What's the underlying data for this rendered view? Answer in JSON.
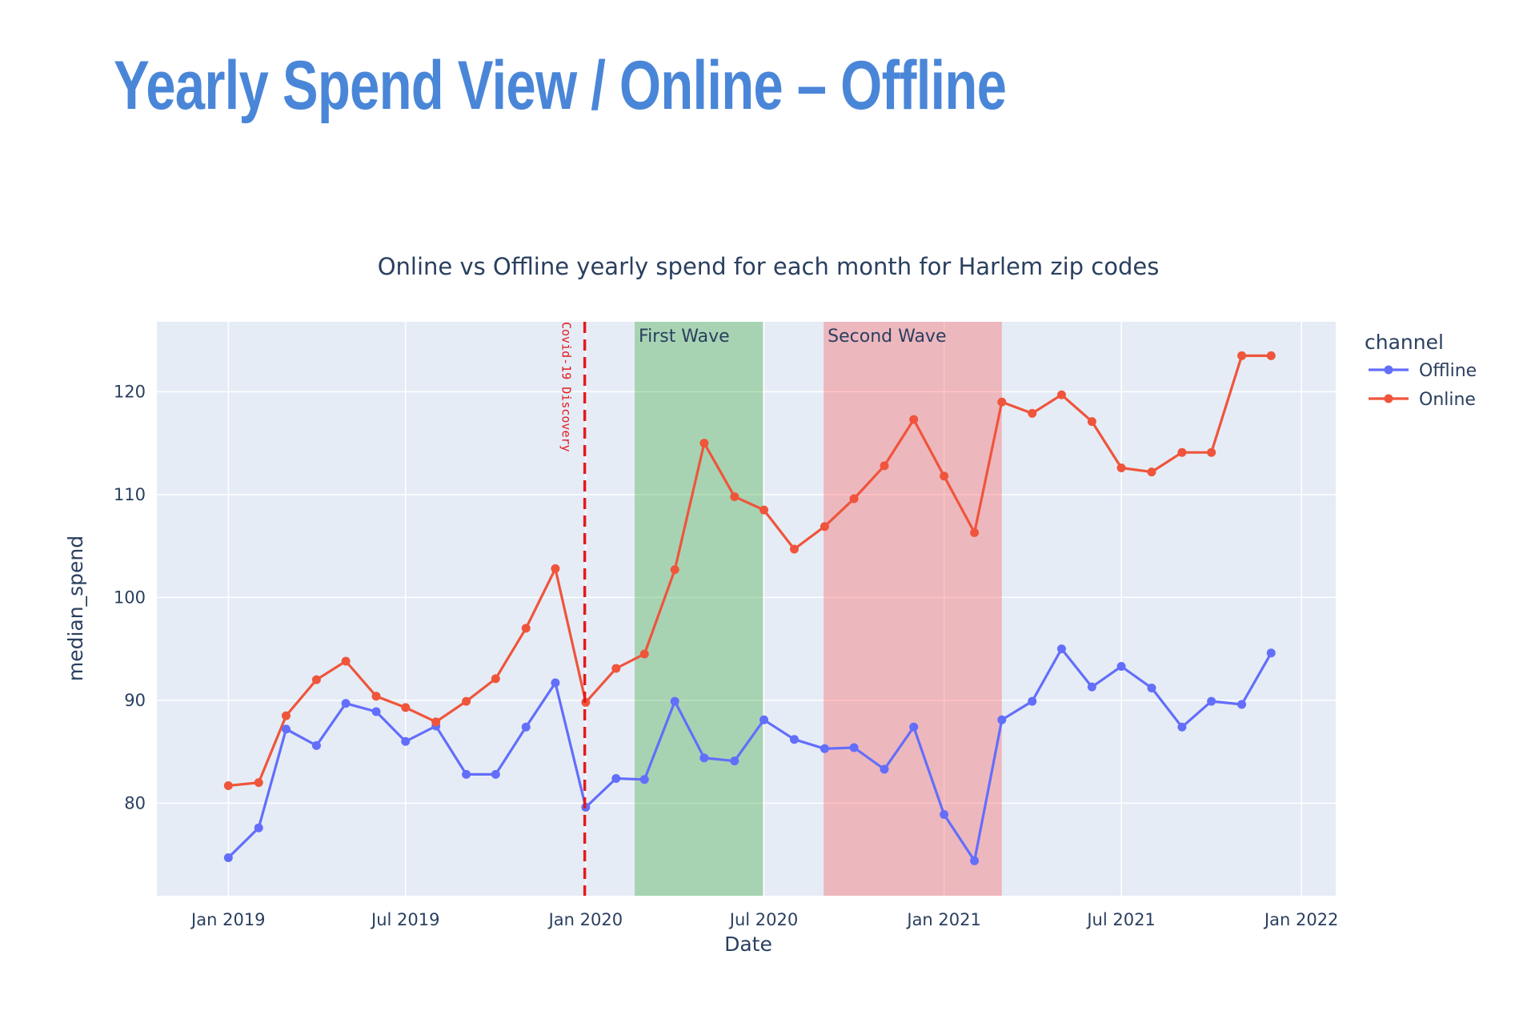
{
  "slide": {
    "title": "Yearly Spend View / Online – Offline"
  },
  "colors": {
    "title": "#4a86d8",
    "plot_bg": "#e5ecf6",
    "grid": "#ffffff",
    "offline": "#636efa",
    "online": "#ef553b",
    "first_wave_band": "#2ca02c",
    "second_wave_band": "#ff4d4d",
    "covid_line": "#e31a1c"
  },
  "chart_data": {
    "type": "line",
    "title": "Online vs Offline yearly spend for each month for Harlem zip codes",
    "xlabel": "Date",
    "ylabel": "median_spend",
    "xlim": [
      "2018-10-20",
      "2022-02-05"
    ],
    "ylim": [
      71,
      126.8
    ],
    "x_ticks": [
      {
        "date": "2019-01-01",
        "label": "Jan 2019"
      },
      {
        "date": "2019-07-01",
        "label": "Jul 2019"
      },
      {
        "date": "2020-01-01",
        "label": "Jan 2020"
      },
      {
        "date": "2020-07-01",
        "label": "Jul 2020"
      },
      {
        "date": "2021-01-01",
        "label": "Jan 2021"
      },
      {
        "date": "2021-07-01",
        "label": "Jul 2021"
      },
      {
        "date": "2022-01-01",
        "label": "Jan 2022"
      }
    ],
    "y_ticks": [
      80,
      90,
      100,
      110,
      120
    ],
    "grid": true,
    "legend": {
      "title": "channel",
      "position": "right"
    },
    "x": [
      "2019-01-01",
      "2019-02-01",
      "2019-03-01",
      "2019-04-01",
      "2019-05-01",
      "2019-06-01",
      "2019-07-01",
      "2019-08-01",
      "2019-09-01",
      "2019-10-01",
      "2019-11-01",
      "2019-12-01",
      "2020-01-01",
      "2020-02-01",
      "2020-03-01",
      "2020-04-01",
      "2020-05-01",
      "2020-06-01",
      "2020-07-01",
      "2020-08-01",
      "2020-09-01",
      "2020-10-01",
      "2020-11-01",
      "2020-12-01",
      "2021-01-01",
      "2021-02-01",
      "2021-03-01",
      "2021-04-01",
      "2021-05-01",
      "2021-06-01",
      "2021-07-01",
      "2021-08-01",
      "2021-09-01",
      "2021-10-01",
      "2021-11-01",
      "2021-12-01"
    ],
    "series": [
      {
        "name": "Offline",
        "color": "#636efa",
        "values": [
          74.7,
          77.6,
          87.2,
          85.6,
          89.7,
          88.9,
          86.0,
          87.5,
          82.8,
          82.8,
          87.4,
          91.7,
          79.6,
          82.4,
          82.3,
          89.9,
          84.4,
          84.1,
          88.1,
          86.2,
          85.3,
          85.4,
          83.3,
          87.4,
          78.9,
          74.4,
          88.1,
          89.9,
          95.0,
          91.3,
          93.3,
          91.2,
          87.4,
          89.9,
          89.6,
          94.6
        ]
      },
      {
        "name": "Online",
        "color": "#ef553b",
        "values": [
          81.7,
          82.0,
          88.5,
          92.0,
          93.8,
          90.4,
          89.3,
          87.9,
          89.9,
          92.1,
          97.0,
          102.8,
          89.8,
          93.1,
          94.5,
          102.7,
          115.0,
          109.8,
          108.5,
          104.7,
          106.9,
          109.6,
          112.8,
          117.3,
          111.8,
          106.3,
          119.0,
          117.9,
          119.7,
          117.1,
          112.6,
          112.2,
          114.1,
          114.1,
          123.5,
          123.5
        ]
      }
    ],
    "shapes": [
      {
        "type": "band",
        "label": "First Wave",
        "x0": "2020-02-20",
        "x1": "2020-06-30",
        "color": "#2ca02c"
      },
      {
        "type": "band",
        "label": "Second Wave",
        "x0": "2020-08-31",
        "x1": "2021-03-01",
        "color": "#ff4d4d"
      },
      {
        "type": "vline",
        "label": "Covid-19 Discovery",
        "x": "2019-12-31",
        "color": "#e31a1c"
      }
    ]
  }
}
